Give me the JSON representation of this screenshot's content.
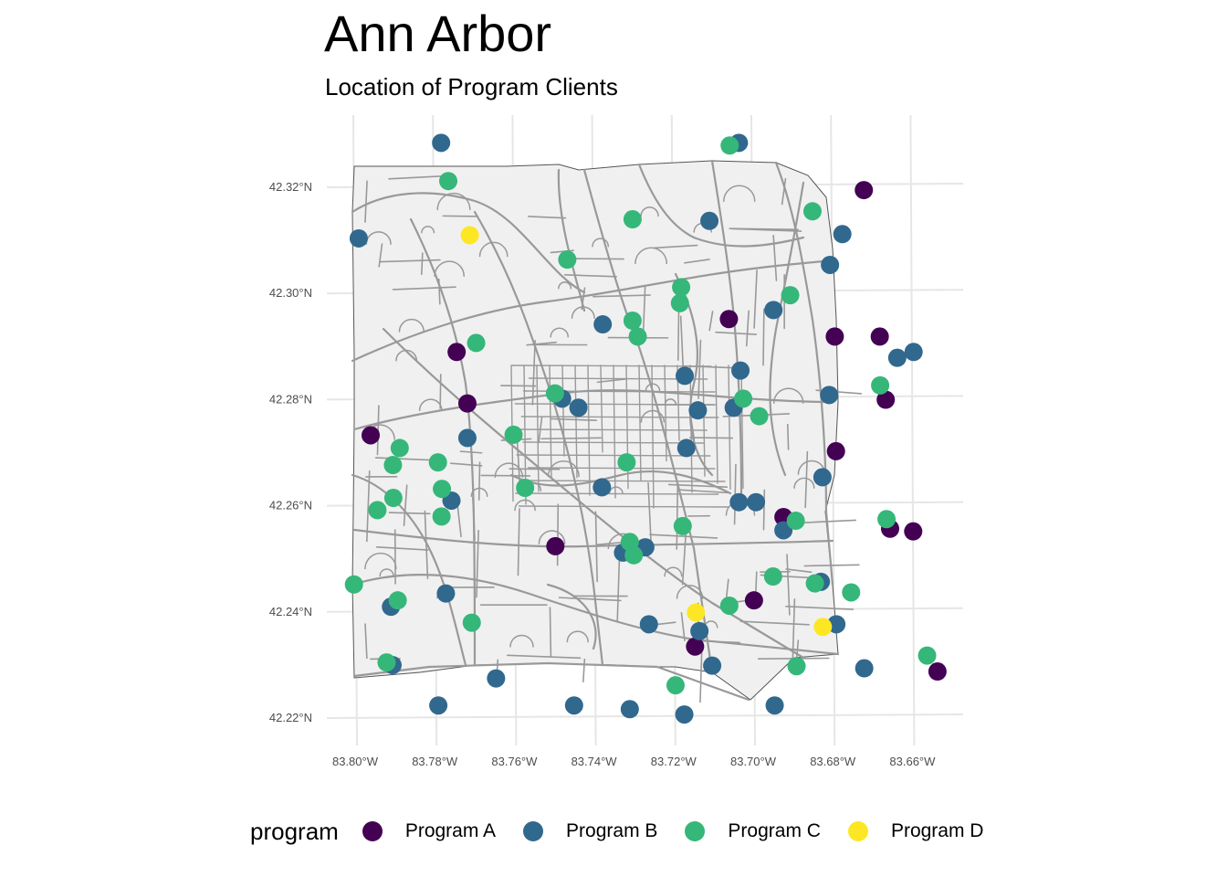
{
  "title": "Ann Arbor",
  "subtitle": "Location of Program Clients",
  "legend": {
    "title": "program",
    "items": [
      {
        "label": "Program A",
        "color": "#440154"
      },
      {
        "label": "Program B",
        "color": "#31688E"
      },
      {
        "label": "Program C",
        "color": "#35B779"
      },
      {
        "label": "Program D",
        "color": "#FDE725"
      }
    ]
  },
  "chart_data": {
    "type": "scatter",
    "title": "Ann Arbor",
    "subtitle": "Location of Program Clients",
    "xlabel": "",
    "ylabel": "",
    "xlim": [
      -83.802,
      -83.649
    ],
    "ylim": [
      42.215,
      42.33
    ],
    "x_ticks": [
      {
        "value": -83.8,
        "label": "83.80°W"
      },
      {
        "value": -83.78,
        "label": "83.78°W"
      },
      {
        "value": -83.76,
        "label": "83.76°W"
      },
      {
        "value": -83.74,
        "label": "83.74°W"
      },
      {
        "value": -83.72,
        "label": "83.72°W"
      },
      {
        "value": -83.7,
        "label": "83.70°W"
      },
      {
        "value": -83.68,
        "label": "83.68°W"
      },
      {
        "value": -83.66,
        "label": "83.66°W"
      }
    ],
    "y_ticks": [
      {
        "value": 42.32,
        "label": "42.32°N"
      },
      {
        "value": 42.3,
        "label": "42.30°N"
      },
      {
        "value": 42.28,
        "label": "42.28°N"
      },
      {
        "value": 42.26,
        "label": "42.26°N"
      },
      {
        "value": 42.24,
        "label": "42.24°N"
      },
      {
        "value": 42.22,
        "label": "42.22°N"
      }
    ],
    "grid": true,
    "legend_position": "bottom",
    "background": "city street map of Ann Arbor",
    "series": [
      {
        "name": "Program A",
        "color": "#440154",
        "points": [
          [
            -83.6722,
            42.3193
          ],
          [
            -83.6795,
            42.2917
          ],
          [
            -83.6682,
            42.2917
          ],
          [
            -83.7061,
            42.295
          ],
          [
            -83.7745,
            42.2888
          ],
          [
            -83.7718,
            42.2791
          ],
          [
            -83.6667,
            42.2798
          ],
          [
            -83.7961,
            42.2731
          ],
          [
            -83.6792,
            42.2701
          ],
          [
            -83.6924,
            42.2577
          ],
          [
            -83.6656,
            42.2555
          ],
          [
            -83.6598,
            42.255
          ],
          [
            -83.7497,
            42.2522
          ],
          [
            -83.6998,
            42.242
          ],
          [
            -83.7146,
            42.2333
          ],
          [
            -83.6537,
            42.2286
          ]
        ]
      },
      {
        "name": "Program B",
        "color": "#31688E",
        "points": [
          [
            -83.7784,
            42.3282
          ],
          [
            -83.7036,
            42.3282
          ],
          [
            -83.7991,
            42.3102
          ],
          [
            -83.711,
            42.3135
          ],
          [
            -83.6776,
            42.311
          ],
          [
            -83.6807,
            42.3052
          ],
          [
            -83.6949,
            42.2967
          ],
          [
            -83.7378,
            42.294
          ],
          [
            -83.6597,
            42.2888
          ],
          [
            -83.6638,
            42.2877
          ],
          [
            -83.7032,
            42.2853
          ],
          [
            -83.7172,
            42.2843
          ],
          [
            -83.6809,
            42.2807
          ],
          [
            -83.748,
            42.28
          ],
          [
            -83.7439,
            42.2783
          ],
          [
            -83.7049,
            42.2783
          ],
          [
            -83.7139,
            42.2778
          ],
          [
            -83.7718,
            42.2726
          ],
          [
            -83.7168,
            42.2707
          ],
          [
            -83.6826,
            42.2652
          ],
          [
            -83.738,
            42.2633
          ],
          [
            -83.7758,
            42.2608
          ],
          [
            -83.7036,
            42.2605
          ],
          [
            -83.6993,
            42.2605
          ],
          [
            -83.6924,
            42.2552
          ],
          [
            -83.7327,
            42.251
          ],
          [
            -83.7271,
            42.252
          ],
          [
            -83.683,
            42.2455
          ],
          [
            -83.7772,
            42.2433
          ],
          [
            -83.791,
            42.2408
          ],
          [
            -83.7262,
            42.2375
          ],
          [
            -83.6791,
            42.2375
          ],
          [
            -83.7135,
            42.2362
          ],
          [
            -83.7906,
            42.2298
          ],
          [
            -83.7103,
            42.2297
          ],
          [
            -83.6721,
            42.2292
          ],
          [
            -83.7646,
            42.2273
          ],
          [
            -83.7791,
            42.2222
          ],
          [
            -83.745,
            42.2222
          ],
          [
            -83.6946,
            42.2222
          ],
          [
            -83.731,
            42.2215
          ],
          [
            -83.7173,
            42.2205
          ]
        ]
      },
      {
        "name": "Program C",
        "color": "#35B779",
        "points": [
          [
            -83.7059,
            42.3277
          ],
          [
            -83.7766,
            42.321
          ],
          [
            -83.6851,
            42.3153
          ],
          [
            -83.7303,
            42.3138
          ],
          [
            -83.7467,
            42.3062
          ],
          [
            -83.7181,
            42.301
          ],
          [
            -83.6907,
            42.2995
          ],
          [
            -83.7184,
            42.298
          ],
          [
            -83.7303,
            42.2947
          ],
          [
            -83.729,
            42.2917
          ],
          [
            -83.7696,
            42.2905
          ],
          [
            -83.6681,
            42.2825
          ],
          [
            -83.7498,
            42.281
          ],
          [
            -83.7025,
            42.28
          ],
          [
            -83.6985,
            42.2767
          ],
          [
            -83.7602,
            42.2732
          ],
          [
            -83.7888,
            42.2707
          ],
          [
            -83.7905,
            42.2675
          ],
          [
            -83.7792,
            42.268
          ],
          [
            -83.7318,
            42.268
          ],
          [
            -83.7782,
            42.263
          ],
          [
            -83.7573,
            42.2632
          ],
          [
            -83.7904,
            42.2613
          ],
          [
            -83.7944,
            42.259
          ],
          [
            -83.7783,
            42.2578
          ],
          [
            -83.6665,
            42.2573
          ],
          [
            -83.6893,
            42.257
          ],
          [
            -83.7177,
            42.256
          ],
          [
            -83.731,
            42.253
          ],
          [
            -83.73,
            42.2505
          ],
          [
            -83.695,
            42.2465
          ],
          [
            -83.6845,
            42.2452
          ],
          [
            -83.6754,
            42.2435
          ],
          [
            -83.8003,
            42.245
          ],
          [
            -83.7893,
            42.242
          ],
          [
            -83.706,
            42.241
          ],
          [
            -83.7707,
            42.2378
          ],
          [
            -83.6563,
            42.2316
          ],
          [
            -83.7921,
            42.2303
          ],
          [
            -83.6891,
            42.2296
          ],
          [
            -83.7195,
            42.226
          ]
        ]
      },
      {
        "name": "Program D",
        "color": "#FDE725",
        "points": [
          [
            -83.7712,
            42.3108
          ],
          [
            -83.7144,
            42.2397
          ],
          [
            -83.6825,
            42.237
          ]
        ]
      }
    ]
  }
}
